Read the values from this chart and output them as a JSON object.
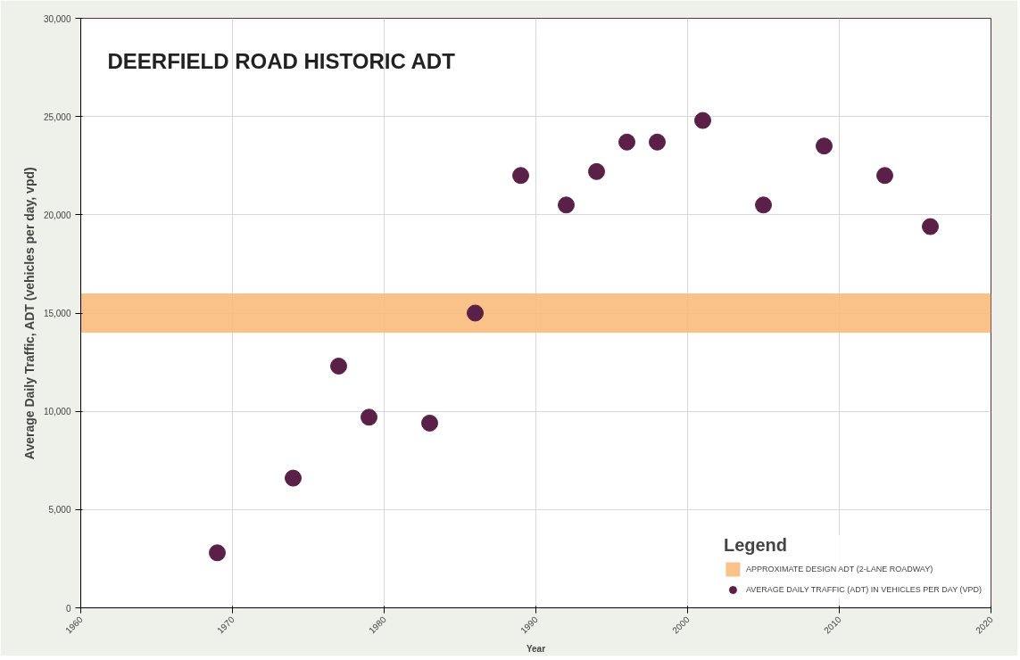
{
  "chart_data": {
    "type": "scatter",
    "title": "DEERFIELD ROAD HISTORIC ADT",
    "xlabel": "Year",
    "ylabel": "Average Daily Traffic, ADT (vehicles per day, vpd)",
    "legend_title": "Legend",
    "x": [
      1969,
      1974,
      1977,
      1979,
      1983,
      1986,
      1989,
      1992,
      1994,
      1996,
      1998,
      2001,
      2005,
      2009,
      2013,
      2016
    ],
    "series": [
      {
        "name": "AVERAGE DAILY TRAFFIC (ADT) IN VEHICLES PER DAY (VPD)",
        "color": "#5a2048",
        "values": [
          2800,
          6600,
          12300,
          9700,
          9400,
          15000,
          22000,
          20500,
          22200,
          23700,
          23700,
          24800,
          20500,
          23500,
          22000,
          19400
        ]
      }
    ],
    "bands": [
      {
        "axis": "y",
        "from": 14000,
        "to": 16000,
        "label": "APPROXIMATE DESIGN ADT (2-LANE ROADWAY)",
        "color": "#f9bb7c"
      }
    ],
    "xlim": [
      1960,
      2020
    ],
    "xticks": [
      1960,
      1970,
      1980,
      1990,
      2000,
      2010,
      2020
    ],
    "ylim": [
      0,
      30000
    ],
    "yticks": [
      0,
      {
        "value": 5000,
        "label": "5,000"
      },
      {
        "value": 10000,
        "label": "10,000"
      },
      {
        "value": 15000,
        "label": "15,000"
      },
      {
        "value": 20000,
        "label": "20,000"
      },
      {
        "value": 25000,
        "label": "25,000"
      },
      {
        "value": 30000,
        "label": "30,000"
      }
    ],
    "grid": true,
    "legend": "bottom right",
    "marker": "circle"
  }
}
